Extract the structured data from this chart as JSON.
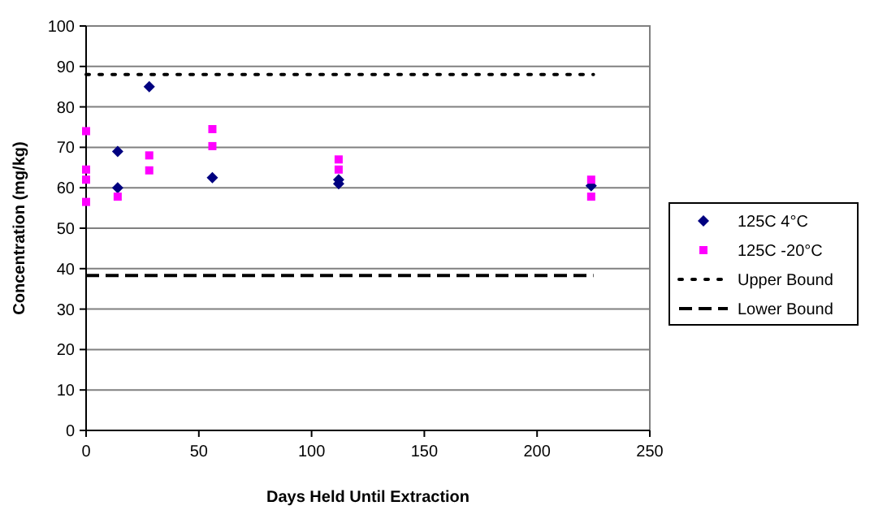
{
  "chart_data": {
    "type": "scatter",
    "xlabel": "Days Held Until Extraction",
    "ylabel": "Concentration (mg/kg)",
    "xlim": [
      0,
      250
    ],
    "xticks": [
      0,
      50,
      100,
      150,
      200,
      250
    ],
    "ylim": [
      0,
      100
    ],
    "yticks": [
      0,
      10,
      20,
      30,
      40,
      50,
      60,
      70,
      80,
      90,
      100
    ],
    "grid": "y",
    "legend": "right",
    "series": [
      {
        "name": "125C 4°C",
        "color": "#000080",
        "marker": "diamond",
        "x": [
          14,
          14,
          28,
          56,
          112,
          112,
          224
        ],
        "values": [
          69,
          60,
          85,
          62.5,
          62,
          61,
          60.5
        ]
      },
      {
        "name": "125C -20°C",
        "color": "#ff00ff",
        "marker": "square",
        "x": [
          0,
          0,
          0,
          0,
          14,
          28,
          28,
          56,
          56,
          112,
          112,
          224,
          224
        ],
        "values": [
          74,
          64.5,
          62,
          56.5,
          57.8,
          68,
          64.3,
          74.5,
          70.3,
          67,
          64.5,
          62,
          57.8
        ]
      },
      {
        "name": "Upper Bound",
        "type": "line",
        "color": "#000000",
        "line_style": "dotted",
        "marker": "none",
        "x": [
          0,
          225
        ],
        "values": [
          88,
          88
        ]
      },
      {
        "name": "Lower Bound",
        "type": "line",
        "color": "#000000",
        "line_style": "dashed",
        "marker": "none",
        "x": [
          0,
          225
        ],
        "values": [
          38.3,
          38.3
        ]
      }
    ]
  }
}
